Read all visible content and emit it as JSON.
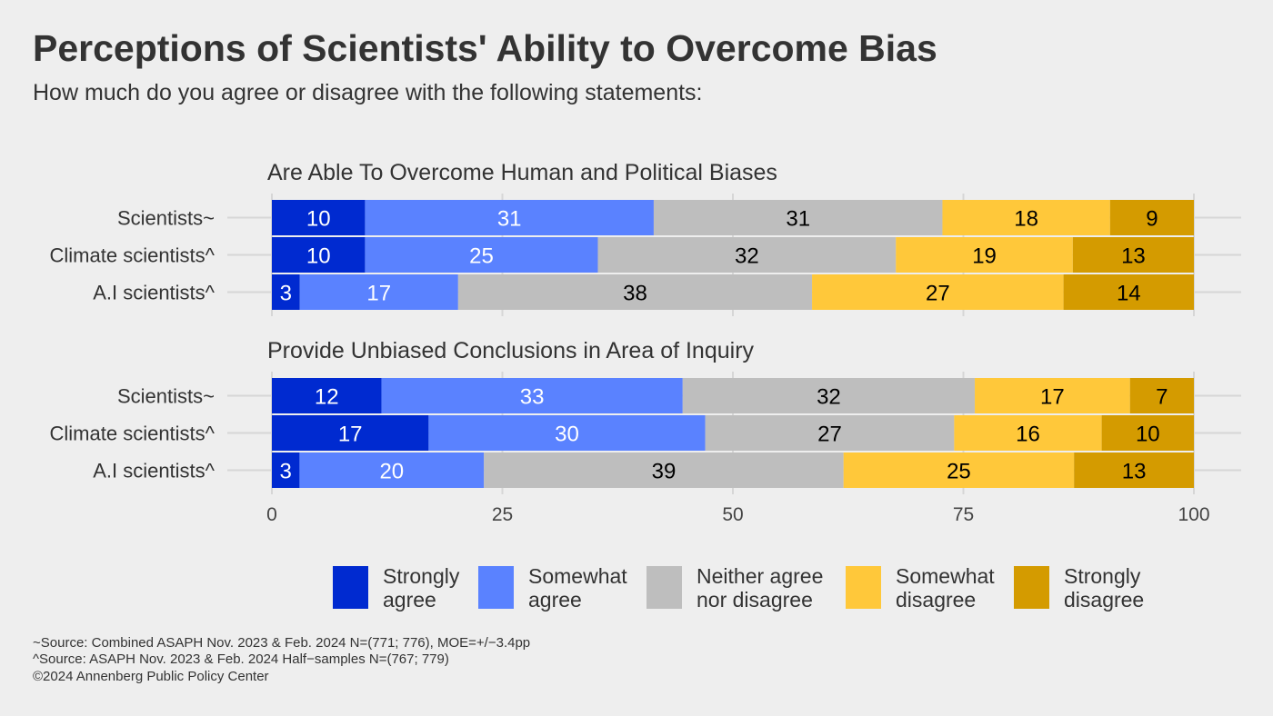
{
  "chart_data": {
    "type": "bar",
    "orientation": "horizontal-stacked",
    "title": "Perceptions of Scientists' Ability to Overcome Bias",
    "subtitle": "How much do you agree or disagree with the following statements:",
    "xlim": [
      0,
      100
    ],
    "x_ticks": [
      "0",
      "25",
      "50",
      "75",
      "100"
    ],
    "grid": true,
    "legend_position": "bottom",
    "legend": [
      {
        "label": "Strongly agree",
        "lines": [
          "Strongly",
          "agree"
        ],
        "color": "#002ad0"
      },
      {
        "label": "Somewhat agree",
        "lines": [
          "Somewhat",
          "agree"
        ],
        "color": "#5a82ff"
      },
      {
        "label": "Neither agree nor disagree",
        "lines": [
          "Neither agree",
          "nor disagree"
        ],
        "color": "#bebebe"
      },
      {
        "label": "Somewhat disagree",
        "lines": [
          "Somewhat",
          "disagree"
        ],
        "color": "#ffc83a"
      },
      {
        "label": "Strongly disagree",
        "lines": [
          "Strongly",
          "disagree"
        ],
        "color": "#d49b00"
      }
    ],
    "label_colors": [
      "#ffffff",
      "#ffffff",
      "#000000",
      "#000000",
      "#000000"
    ],
    "panels": [
      {
        "title": "Are Able To Overcome Human and Political Biases",
        "categories": [
          "Scientists~",
          "Climate scientists^",
          "A.I scientists^"
        ],
        "values": [
          [
            10,
            31,
            31,
            18,
            9
          ],
          [
            10,
            25,
            32,
            19,
            13
          ],
          [
            3,
            17,
            38,
            27,
            14
          ]
        ]
      },
      {
        "title": "Provide Unbiased Conclusions in Area of Inquiry",
        "categories": [
          "Scientists~",
          "Climate scientists^",
          "A.I scientists^"
        ],
        "values": [
          [
            12,
            33,
            32,
            17,
            7
          ],
          [
            17,
            30,
            27,
            16,
            10
          ],
          [
            3,
            20,
            39,
            25,
            13
          ]
        ]
      }
    ]
  },
  "footnotes": [
    "~Source: Combined ASAPH Nov. 2023 & Feb. 2024 N=(771; 776), MOE=+/−3.4pp",
    "^Source: ASAPH Nov. 2023 & Feb. 2024 Half−samples N=(767; 779)",
    "©2024 Annenberg Public Policy Center"
  ]
}
